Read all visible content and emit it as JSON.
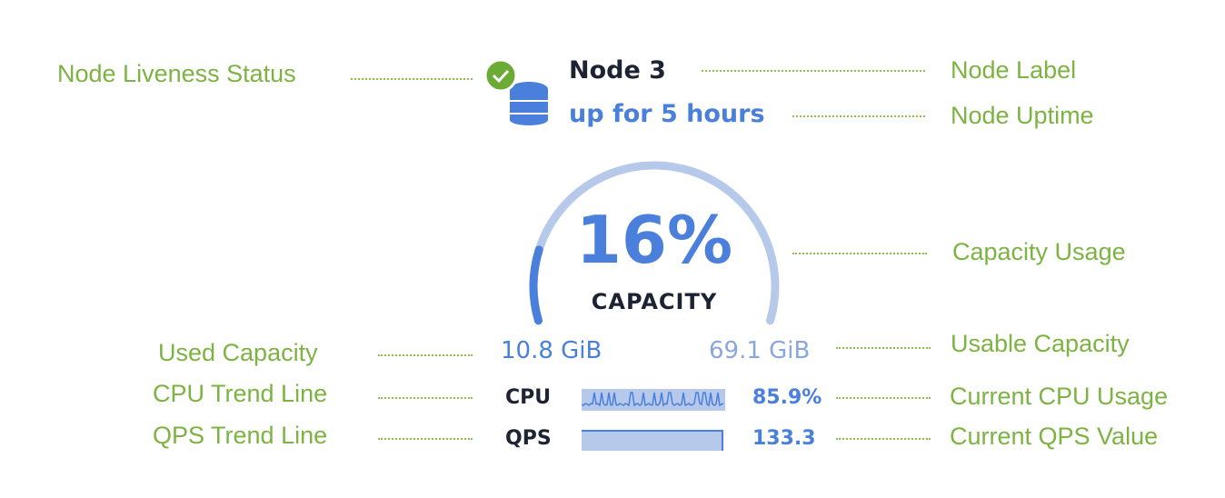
{
  "node": {
    "label": "Node 3",
    "uptime": "up for 5 hours",
    "liveness": "live",
    "icon": "database-icon"
  },
  "capacity": {
    "percent_label": "16%",
    "percent": 16,
    "caption": "CAPACITY",
    "used": "10.8 GiB",
    "usable": "69.1 GiB"
  },
  "cpu": {
    "label": "CPU",
    "value": "85.9%"
  },
  "qps": {
    "label": "QPS",
    "value": "133.3"
  },
  "annotations": {
    "liveness": "Node Liveness Status",
    "label": "Node Label",
    "uptime": "Node Uptime",
    "capacity": "Capacity Usage",
    "used": "Used Capacity",
    "usable": "Usable Capacity",
    "cpu_trend": "CPU Trend Line",
    "cpu_current": "Current CPU Usage",
    "qps_trend": "QPS Trend Line",
    "qps_current": "Current QPS Value"
  },
  "colors": {
    "accent": "#4a7fdc",
    "track": "#b7c9ea",
    "annotation": "#7cb342",
    "check": "#6aaa35",
    "dark": "#1c2333"
  }
}
